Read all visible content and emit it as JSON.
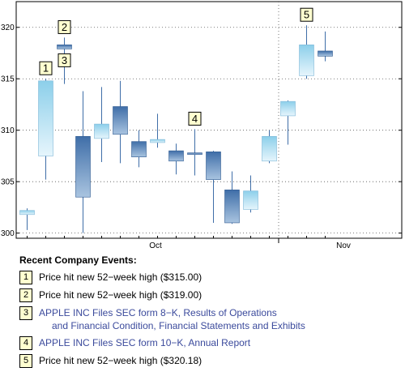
{
  "chart_data": {
    "type": "candlestick",
    "x_tick_labels": [
      "Oct",
      "Nov"
    ],
    "y_ticks": [
      300,
      305,
      310,
      315,
      320
    ],
    "ylim": [
      299.5,
      322.5
    ],
    "grid": true,
    "candles": [
      {
        "open": 301.8,
        "close": 302.2,
        "high": 302.4,
        "low": 300.3
      },
      {
        "open": 307.5,
        "close": 314.8,
        "high": 315.0,
        "low": 305.2
      },
      {
        "open": 318.3,
        "close": 317.9,
        "high": 319.0,
        "low": 314.5
      },
      {
        "open": 309.4,
        "close": 303.5,
        "high": 313.8,
        "low": 300.0
      },
      {
        "open": 309.2,
        "close": 310.6,
        "high": 314.2,
        "low": 306.9
      },
      {
        "open": 312.3,
        "close": 309.6,
        "high": 314.8,
        "low": 306.8
      },
      {
        "open": 308.9,
        "close": 307.4,
        "high": 310.0,
        "low": 306.4
      },
      {
        "open": 308.8,
        "close": 309.1,
        "high": 311.6,
        "low": 308.3
      },
      {
        "open": 308.0,
        "close": 307.0,
        "high": 308.7,
        "low": 305.7
      },
      {
        "open": 307.8,
        "close": 307.7,
        "high": 310.1,
        "low": 305.6
      },
      {
        "open": 307.9,
        "close": 305.2,
        "high": 308.0,
        "low": 301.0
      },
      {
        "open": 304.2,
        "close": 301.0,
        "high": 306.0,
        "low": 300.9
      },
      {
        "open": 302.3,
        "close": 304.1,
        "high": 305.6,
        "low": 302.0
      },
      {
        "open": 307.0,
        "close": 309.4,
        "high": 310.0,
        "low": 306.8
      },
      {
        "open": 311.4,
        "close": 312.8,
        "high": 312.9,
        "low": 308.6
      },
      {
        "open": 315.3,
        "close": 318.3,
        "high": 320.2,
        "low": 315.0
      },
      {
        "open": 317.7,
        "close": 317.2,
        "high": 319.6,
        "low": 316.7
      }
    ],
    "markers": [
      {
        "label": "1",
        "candle": 1,
        "position": "above"
      },
      {
        "label": "2",
        "candle": 2,
        "position": "above"
      },
      {
        "label": "3",
        "candle": 2,
        "position": "below"
      },
      {
        "label": "4",
        "candle": 9,
        "position": "above"
      },
      {
        "label": "5",
        "candle": 15,
        "position": "above"
      }
    ]
  },
  "events": {
    "title": "Recent Company Events:",
    "items": [
      {
        "num": "1",
        "text": "Price hit new 52−week high ($315.00)",
        "text2": "",
        "link": false
      },
      {
        "num": "2",
        "text": "Price hit new 52−week high ($319.00)",
        "text2": "",
        "link": false
      },
      {
        "num": "3",
        "text": "APPLE INC Files SEC form 8−K, Results of Operations",
        "text2": "and Financial Condition, Financial Statements and Exhibits",
        "link": true
      },
      {
        "num": "4",
        "text": "APPLE INC Files SEC form 10−K, Annual Report",
        "text2": "",
        "link": true
      },
      {
        "num": "5",
        "text": "Price hit new 52−week high ($320.18)",
        "text2": "",
        "link": false
      }
    ]
  },
  "colors": {
    "up_top": "#8ccfea",
    "up_bottom": "#e6f5fc",
    "down_top": "#3f6ea8",
    "down_bottom": "#a9c4e0",
    "wick": "#3f6ea8",
    "marker_fill": "#ffffd0",
    "link": "#3b4a9c"
  }
}
